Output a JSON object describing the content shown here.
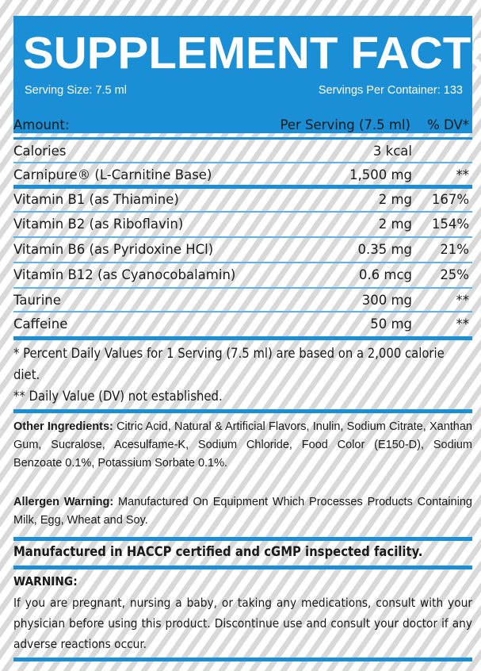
{
  "header": {
    "title": "SUPPLEMENT FACTS",
    "serving_size": "Serving Size: 7.5 ml",
    "servings_per_container": "Servings Per Container: 133",
    "color": "#1a8fd6"
  },
  "table": {
    "head": {
      "name": "Amount:",
      "amount": "Per Serving (7.5 ml)",
      "dv": "% DV*"
    },
    "rows": [
      {
        "name": "Calories",
        "amount": "3 kcal",
        "dv": ""
      },
      {
        "name": "Carnipure® (L-Carnitine Base)",
        "amount": "1,500 mg",
        "dv": "**"
      },
      {
        "name": "Vitamin B1 (as Thiamine)",
        "amount": "2 mg",
        "dv": "167%"
      },
      {
        "name": "Vitamin B2 (as Riboflavin)",
        "amount": "2 mg",
        "dv": "154%"
      },
      {
        "name": "Vitamin B6 (as Pyridoxine HCl)",
        "amount": "0.35 mg",
        "dv": "21%"
      },
      {
        "name": "Vitamin B12 (as Cyanocobalamin)",
        "amount": "0.6 mcg",
        "dv": "25%"
      },
      {
        "name": "Taurine",
        "amount": "300 mg",
        "dv": "**"
      },
      {
        "name": "Caffeine",
        "amount": "50 mg",
        "dv": "**"
      }
    ]
  },
  "footnotes": {
    "line1": "* Percent Daily Values for 1 Serving (7.5 ml) are based on a 2,000 calorie diet.",
    "line2": "** Daily Value (DV) not established."
  },
  "other_ingredients": {
    "label": "Other Ingredients:",
    "text": " Citric Acid, Natural & Artificial Flavors, Inulin, Sodium Citrate, Xanthan Gum, Sucralose, Acesulfame-K, Sodium Chloride, Food Color (E150-D), Sodium Benzoate 0.1%, Potassium Sorbate 0.1%."
  },
  "allergen": {
    "label": "Allergen Warning:",
    "text": " Manufactured On Equipment Which Processes Products Containing Milk, Egg, Wheat and Soy."
  },
  "facility": "Manufactured in HACCP certified and cGMP inspected facility.",
  "warning": {
    "label": "WARNING:",
    "text": "If you are pregnant, nursing a baby, or taking any medications, consult with your physician before using this product. Discontinue use and consult your doctor if any adverse reactions occur."
  }
}
